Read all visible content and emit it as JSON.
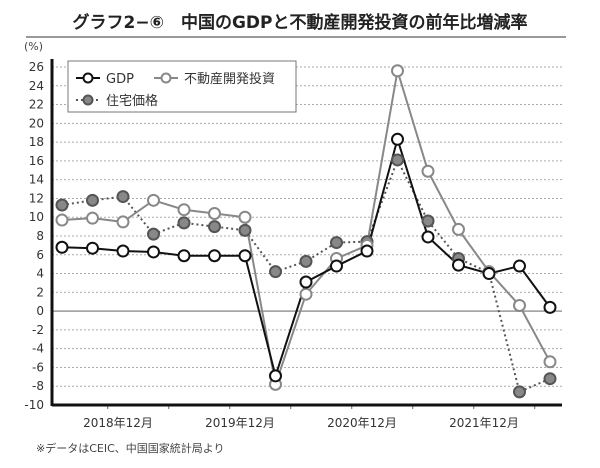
{
  "chart_data": {
    "type": "line",
    "title": "グラフ2−⑥　中国のGDPと不動産開発投資の前年比増減率",
    "ylabel": "(%)",
    "xlabel": "",
    "ylim": [
      -10,
      26
    ],
    "yticks": [
      -10,
      -8,
      -6,
      -4,
      -2,
      0,
      2,
      4,
      6,
      8,
      10,
      12,
      14,
      16,
      18,
      20,
      22,
      24,
      26
    ],
    "x_tick_labels": [
      {
        "index": 2,
        "label": "2018年12月"
      },
      {
        "index": 6,
        "label": "2019年12月"
      },
      {
        "index": 10,
        "label": "2020年12月"
      },
      {
        "index": 14,
        "label": "2021年12月"
      }
    ],
    "grid": true,
    "legend_position": "top-left",
    "series": [
      {
        "name": "GDP",
        "color": "#111111",
        "style": "solid",
        "marker": "open-circle",
        "values": [
          6.8,
          6.7,
          6.4,
          6.3,
          5.9,
          5.9,
          5.9,
          -6.9,
          3.1,
          4.8,
          6.4,
          18.3,
          7.9,
          4.9,
          4.0,
          4.8,
          0.4
        ]
      },
      {
        "name": "不動産開発投資",
        "color": "#888888",
        "style": "solid",
        "marker": "open-circle",
        "values": [
          9.7,
          9.9,
          9.5,
          11.8,
          10.8,
          10.4,
          10.0,
          -7.8,
          1.8,
          5.6,
          7.0,
          25.6,
          14.9,
          8.7,
          4.2,
          0.6,
          -5.4
        ]
      },
      {
        "name": "住宅価格",
        "color": "#555555",
        "style": "dotted",
        "marker": "filled-circle",
        "values": [
          11.3,
          11.8,
          12.2,
          8.2,
          9.4,
          9.0,
          8.6,
          4.2,
          5.3,
          7.3,
          7.4,
          16.1,
          9.6,
          5.6,
          4.1,
          -8.6,
          -7.2
        ]
      }
    ]
  },
  "footnote": "※データはCEIC、中国国家統計局より"
}
